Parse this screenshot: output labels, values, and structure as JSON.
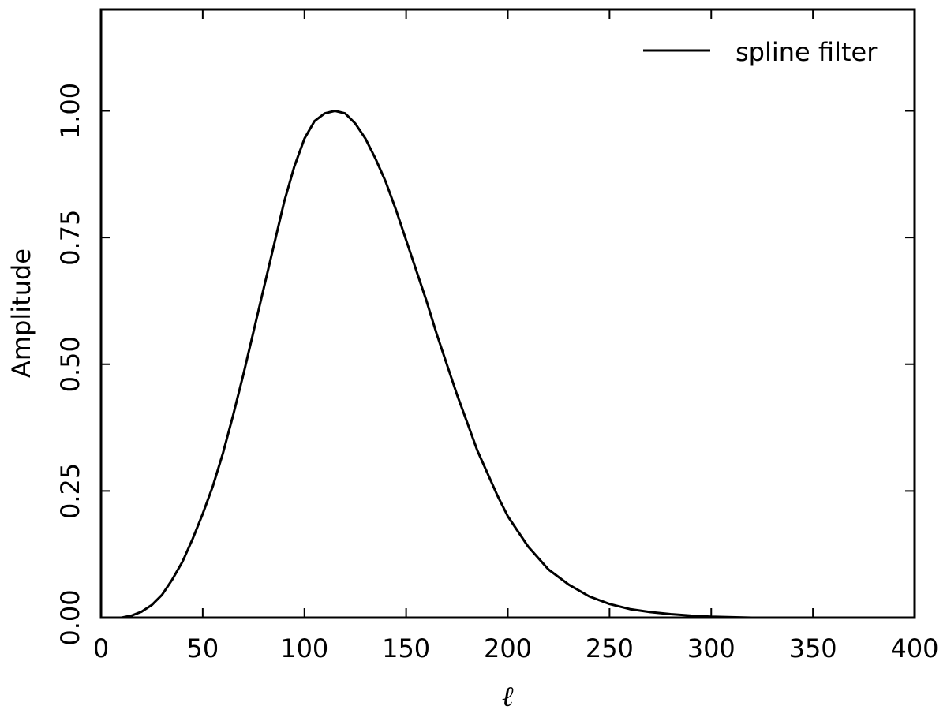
{
  "chart_data": {
    "type": "line",
    "title": "",
    "xlabel": "ℓ",
    "ylabel": "Amplitude",
    "xlim": [
      0,
      400
    ],
    "ylim": [
      0,
      1.2
    ],
    "grid": false,
    "legend_position": "top-right",
    "x_ticks": [
      0,
      50,
      100,
      150,
      200,
      250,
      300,
      350,
      400
    ],
    "x_tick_labels": [
      "0",
      "50",
      "100",
      "150",
      "200",
      "250",
      "300",
      "350",
      "400"
    ],
    "y_ticks": [
      0,
      0.25,
      0.5,
      0.75,
      1.0
    ],
    "y_tick_labels": [
      "0.00",
      "0.25",
      "0.50",
      "0.75",
      "1.00"
    ],
    "series": [
      {
        "name": "spline filter",
        "color": "#000000",
        "x": [
          0,
          10,
          15,
          20,
          25,
          30,
          35,
          40,
          45,
          50,
          55,
          60,
          65,
          70,
          75,
          80,
          85,
          90,
          95,
          100,
          105,
          110,
          115,
          120,
          125,
          130,
          135,
          140,
          145,
          150,
          155,
          160,
          165,
          170,
          175,
          180,
          185,
          190,
          195,
          200,
          210,
          220,
          230,
          240,
          250,
          260,
          270,
          280,
          290,
          300,
          310,
          320
        ],
        "y": [
          0.0,
          0.0,
          0.004,
          0.012,
          0.025,
          0.045,
          0.075,
          0.11,
          0.155,
          0.205,
          0.26,
          0.325,
          0.4,
          0.48,
          0.565,
          0.65,
          0.735,
          0.82,
          0.89,
          0.945,
          0.98,
          0.995,
          1.0,
          0.995,
          0.975,
          0.945,
          0.905,
          0.86,
          0.805,
          0.745,
          0.685,
          0.625,
          0.56,
          0.5,
          0.44,
          0.385,
          0.33,
          0.285,
          0.24,
          0.2,
          0.14,
          0.095,
          0.065,
          0.042,
          0.027,
          0.017,
          0.011,
          0.007,
          0.004,
          0.002,
          0.001,
          0.0
        ]
      }
    ]
  }
}
